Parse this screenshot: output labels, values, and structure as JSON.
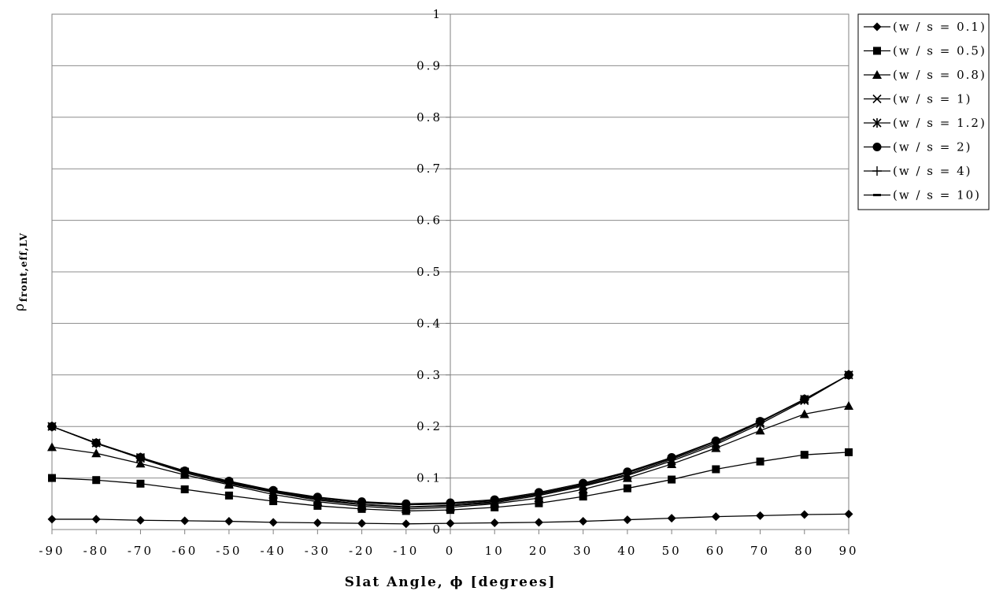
{
  "chart_data": {
    "type": "line",
    "title": "",
    "xlabel": "Slat Angle, ϕ [degrees]",
    "ylabel": "ρ",
    "ylabel_sub": "front,eff,LV",
    "xlim": [
      -90,
      90
    ],
    "ylim": [
      0,
      1
    ],
    "grid": "horizontal",
    "legend_position": "right",
    "x": [
      -90,
      -80,
      -70,
      -60,
      -50,
      -40,
      -30,
      -20,
      -10,
      0,
      10,
      20,
      30,
      40,
      50,
      60,
      70,
      80,
      90
    ],
    "x_ticks": [
      "-90",
      "-80",
      "-70",
      "-60",
      "-50",
      "-40",
      "-30",
      "-20",
      "-10",
      "0",
      "10",
      "20",
      "30",
      "40",
      "50",
      "60",
      "70",
      "80",
      "90"
    ],
    "y_ticks": [
      "0",
      "0.1",
      "0.2",
      "0.3",
      "0.4",
      "0.5",
      "0.6",
      "0.7",
      "0.8",
      "0.9",
      "1"
    ],
    "series": [
      {
        "name": "(w / s = 0.1)",
        "marker": "diamond",
        "values": [
          0.02,
          0.02,
          0.018,
          0.017,
          0.016,
          0.014,
          0.013,
          0.012,
          0.011,
          0.012,
          0.013,
          0.014,
          0.016,
          0.019,
          0.022,
          0.025,
          0.027,
          0.029,
          0.03
        ]
      },
      {
        "name": "(w / s = 0.5)",
        "marker": "square",
        "values": [
          0.1,
          0.096,
          0.089,
          0.078,
          0.066,
          0.055,
          0.046,
          0.04,
          0.036,
          0.038,
          0.043,
          0.051,
          0.064,
          0.08,
          0.097,
          0.117,
          0.132,
          0.145,
          0.15
        ]
      },
      {
        "name": "(w / s = 0.8)",
        "marker": "triangle",
        "values": [
          0.16,
          0.148,
          0.128,
          0.106,
          0.087,
          0.068,
          0.054,
          0.045,
          0.04,
          0.043,
          0.05,
          0.061,
          0.078,
          0.1,
          0.127,
          0.158,
          0.192,
          0.224,
          0.24
        ]
      },
      {
        "name": "(w / s = 1)",
        "marker": "x",
        "values": [
          0.2,
          0.168,
          0.138,
          0.11,
          0.089,
          0.072,
          0.057,
          0.048,
          0.043,
          0.046,
          0.052,
          0.066,
          0.084,
          0.105,
          0.133,
          0.165,
          0.205,
          0.25,
          0.3
        ]
      },
      {
        "name": "(w / s = 1.2)",
        "marker": "star",
        "values": [
          0.2,
          0.168,
          0.14,
          0.112,
          0.091,
          0.073,
          0.059,
          0.049,
          0.044,
          0.047,
          0.054,
          0.068,
          0.086,
          0.107,
          0.136,
          0.168,
          0.208,
          0.253,
          0.3
        ]
      },
      {
        "name": "(w / s = 2)",
        "marker": "circle",
        "values": [
          0.2,
          0.168,
          0.14,
          0.114,
          0.094,
          0.076,
          0.063,
          0.054,
          0.05,
          0.052,
          0.058,
          0.072,
          0.09,
          0.112,
          0.14,
          0.172,
          0.21,
          0.253,
          0.3
        ]
      },
      {
        "name": "(w / s = 4)",
        "marker": "plus",
        "values": [
          0.2,
          0.167,
          0.139,
          0.113,
          0.093,
          0.075,
          0.061,
          0.052,
          0.048,
          0.05,
          0.056,
          0.07,
          0.088,
          0.11,
          0.139,
          0.171,
          0.209,
          0.252,
          0.3
        ]
      },
      {
        "name": "(w / s = 10)",
        "marker": "dash",
        "values": [
          0.2,
          0.167,
          0.139,
          0.113,
          0.092,
          0.075,
          0.061,
          0.052,
          0.048,
          0.05,
          0.056,
          0.07,
          0.088,
          0.11,
          0.138,
          0.171,
          0.209,
          0.252,
          0.3
        ]
      }
    ]
  }
}
